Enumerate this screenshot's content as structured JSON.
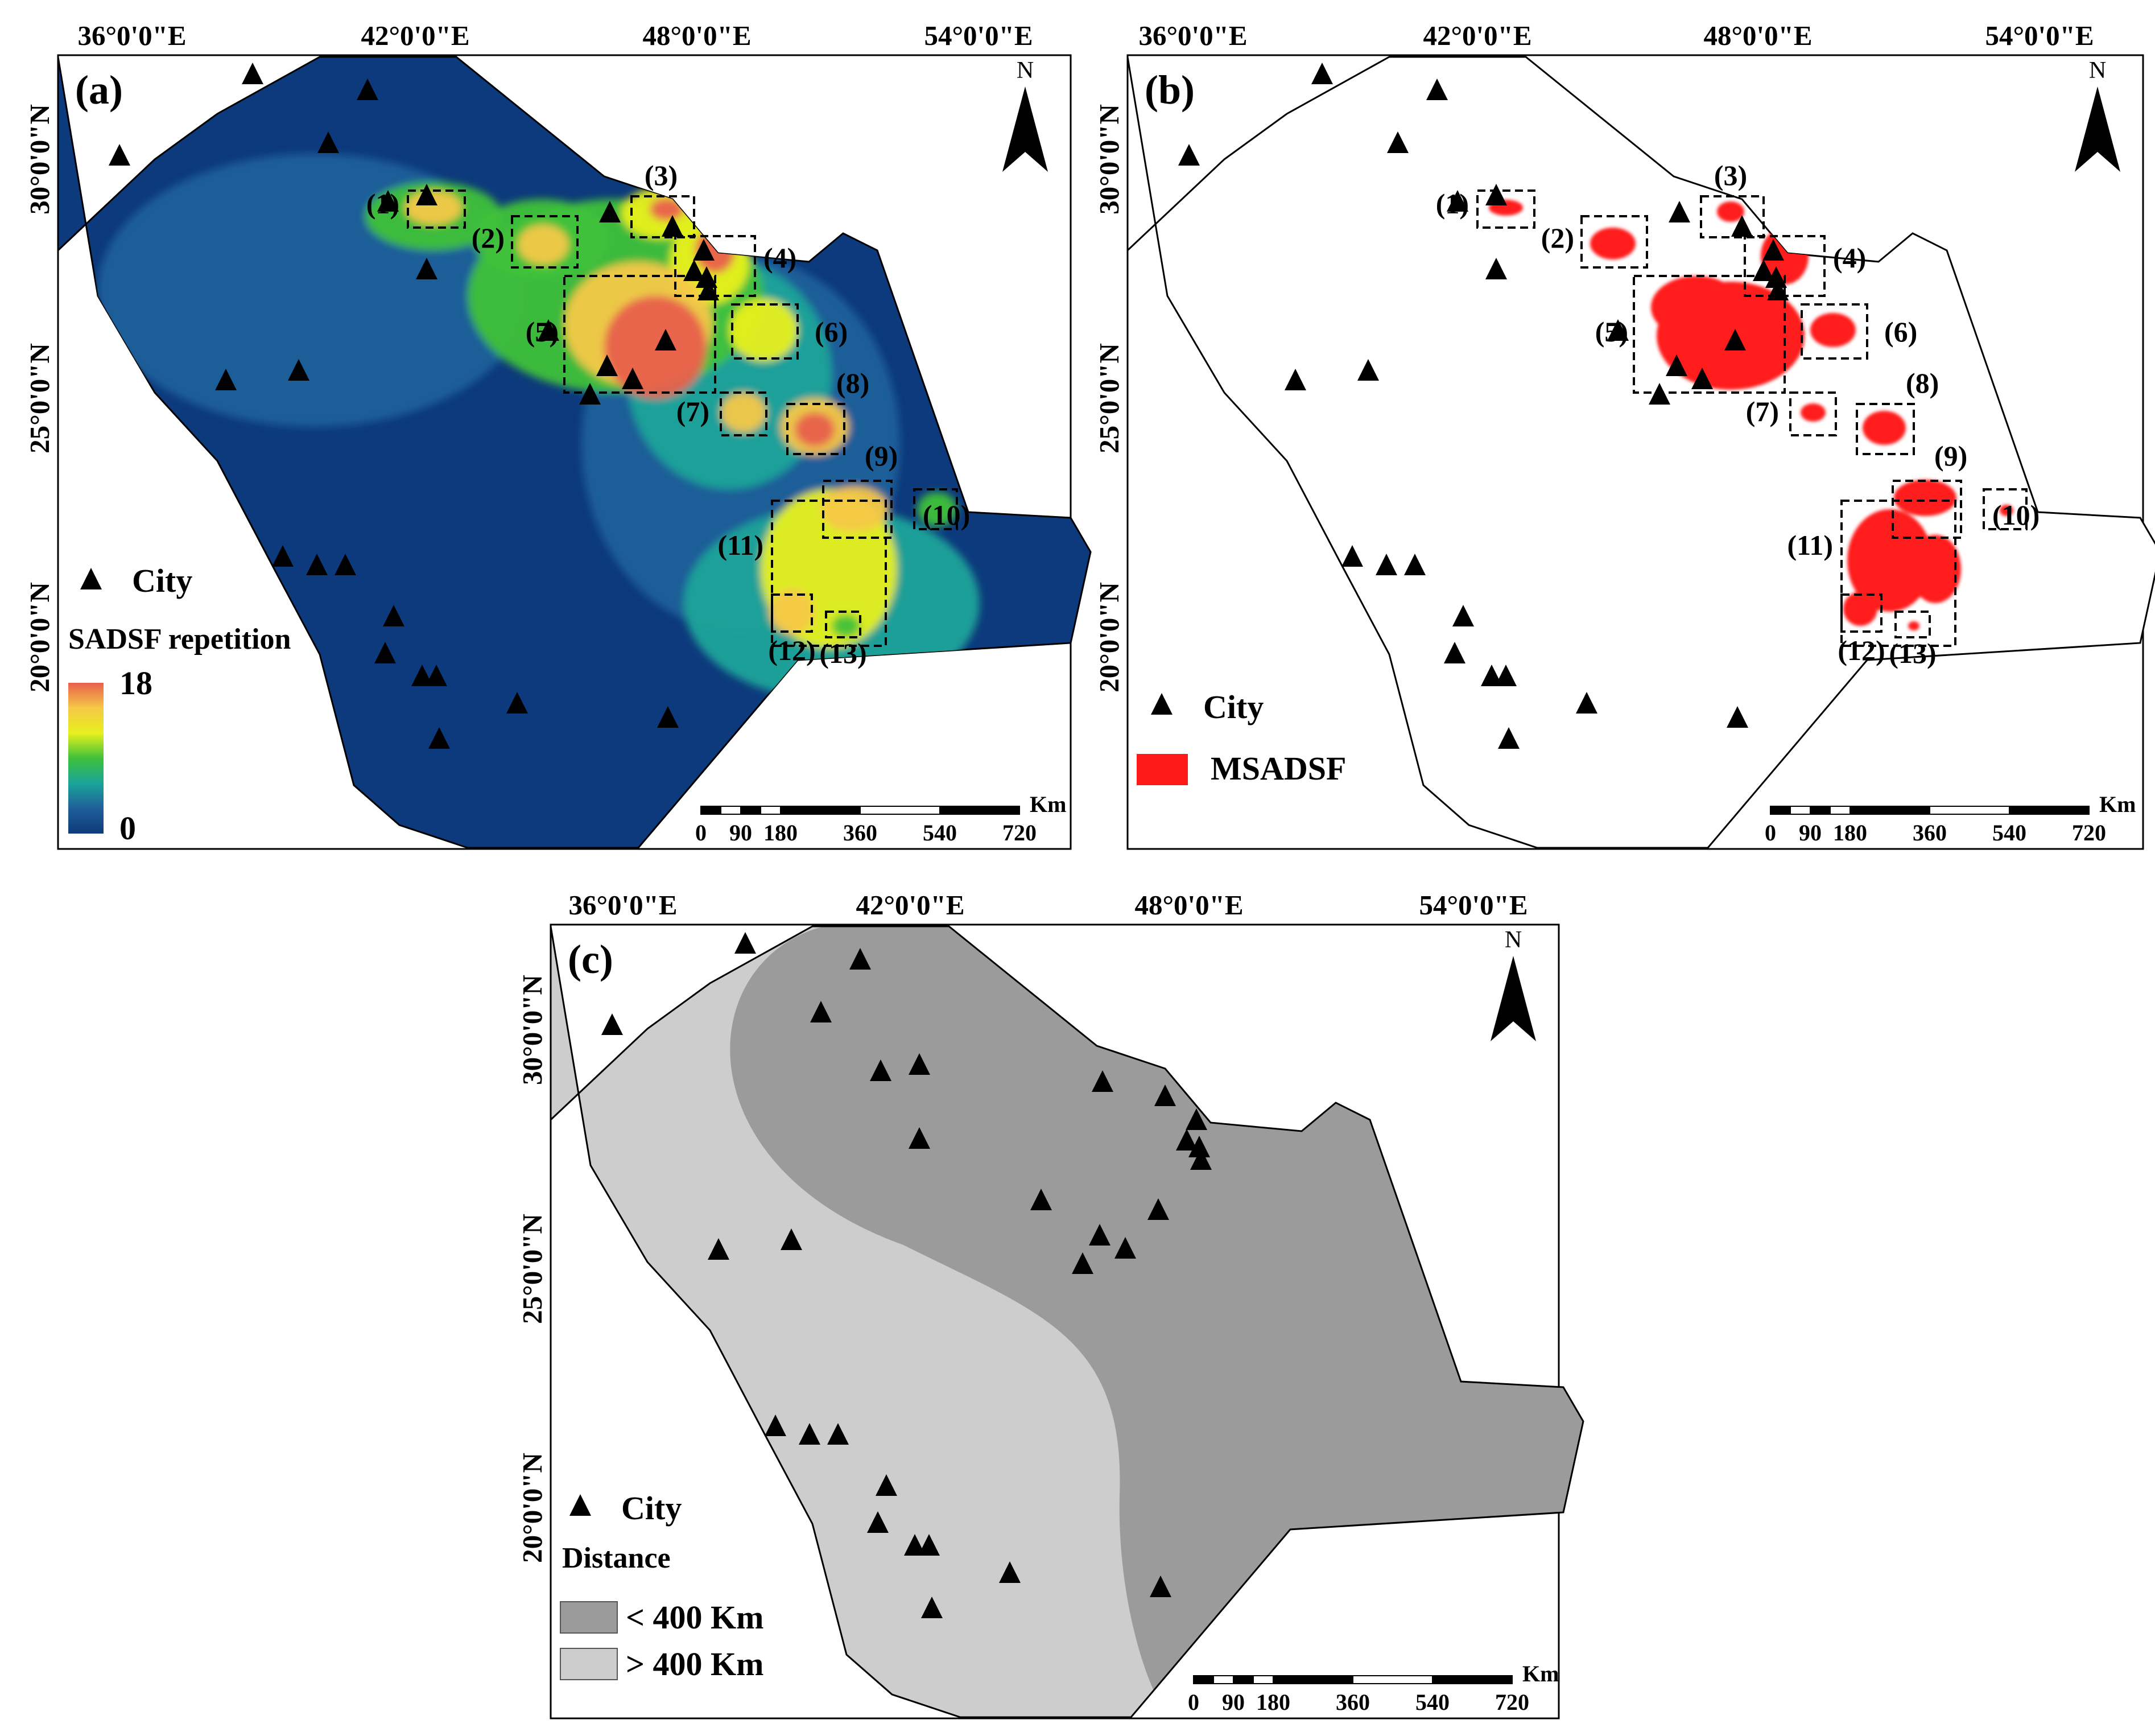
{
  "panels": [
    {
      "label": "(a)",
      "lon_ticks": [
        "36°0'0\"E",
        "42°0'0\"E",
        "48°0'0\"E",
        "54°0'0\"E"
      ],
      "lat_ticks": [
        "30°0'0\"N",
        "25°0'0\"N",
        "20°0'0\"N"
      ],
      "north": "N",
      "legend": {
        "city": "City",
        "title": "SADSF repetition",
        "max": "18",
        "min": "0",
        "ramp_colors": [
          "#e8604c",
          "#f6c847",
          "#e8f01e",
          "#3fc13a",
          "#1aa49a",
          "#1f5f9a",
          "#0e3a7a"
        ]
      },
      "boxes": [
        "(1)",
        "(2)",
        "(3)",
        "(4)",
        "(5)",
        "(6)",
        "(7)",
        "(8)",
        "(9)",
        "(10)",
        "(11)",
        "(12)",
        "(13)"
      ],
      "scale": {
        "unit": "Km",
        "labels": [
          "0",
          "90",
          "180",
          "360",
          "540",
          "720"
        ]
      }
    },
    {
      "label": "(b)",
      "lon_ticks": [
        "36°0'0\"E",
        "42°0'0\"E",
        "48°0'0\"E",
        "54°0'0\"E"
      ],
      "lat_ticks": [
        "30°0'0\"N",
        "25°0'0\"N",
        "20°0'0\"N"
      ],
      "north": "N",
      "legend": {
        "city": "City",
        "msadsf": "MSADSF",
        "msadsf_color": "#ff1a1a"
      },
      "boxes": [
        "(1)",
        "(2)",
        "(3)",
        "(4)",
        "(5)",
        "(6)",
        "(7)",
        "(8)",
        "(9)",
        "(10)",
        "(11)",
        "(12)",
        "(13)"
      ],
      "scale": {
        "unit": "Km",
        "labels": [
          "0",
          "90",
          "180",
          "360",
          "540",
          "720"
        ]
      }
    },
    {
      "label": "(c)",
      "lon_ticks": [
        "36°0'0\"E",
        "42°0'0\"E",
        "48°0'0\"E",
        "54°0'0\"E"
      ],
      "lat_ticks": [
        "30°0'0\"N",
        "25°0'0\"N",
        "20°0'0\"N"
      ],
      "north": "N",
      "legend": {
        "city": "City",
        "title": "Distance",
        "near": "< 400 Km",
        "far": "> 400 Km",
        "near_color": "#9b9b9b",
        "far_color": "#cdcdcd"
      },
      "scale": {
        "unit": "Km",
        "labels": [
          "0",
          "90",
          "180",
          "360",
          "540",
          "720"
        ]
      }
    }
  ],
  "colors": {
    "background_a": "#0d3a7c",
    "hotspot": "#e8604c",
    "outline": "#000000"
  }
}
